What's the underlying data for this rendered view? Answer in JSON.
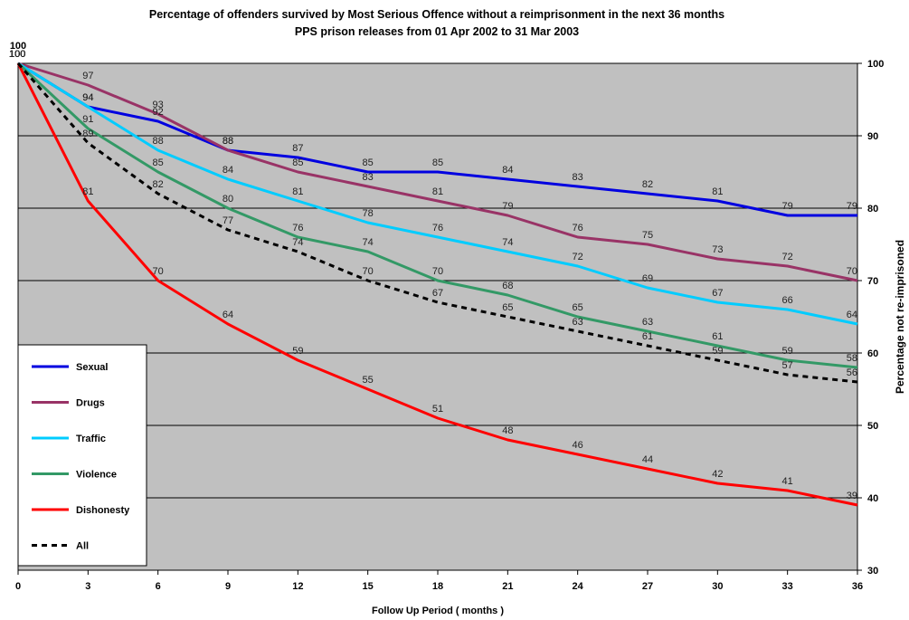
{
  "chart_data": {
    "type": "line",
    "title": "Percentage of offenders survived by Most Serious Offence without a reimprisonment in the next 36 months",
    "subtitle": "PPS prison releases from 01 Apr 2002 to 31 Mar 2003",
    "xlabel": "Follow Up Period ( months )",
    "ylabel_right": "Percentage not re-imprisoned",
    "x": [
      0,
      3,
      6,
      9,
      12,
      15,
      18,
      21,
      24,
      27,
      30,
      33,
      36
    ],
    "x_ticks": [
      "0",
      "3",
      "6",
      "9",
      "12",
      "15",
      "18",
      "21",
      "24",
      "27",
      "30",
      "33",
      "36"
    ],
    "ylim": [
      30,
      100
    ],
    "y_ticks": [
      "30",
      "40",
      "50",
      "60",
      "70",
      "80",
      "90",
      "100"
    ],
    "left_axis_top_label": "100",
    "grid": true,
    "legend_position": "bottom-left",
    "series": [
      {
        "name": "Sexual",
        "color": "#0000e0",
        "dashed": false,
        "values": [
          100,
          94,
          92,
          88,
          87,
          85,
          85,
          84,
          83,
          82,
          81,
          79,
          79
        ]
      },
      {
        "name": "Drugs",
        "color": "#993366",
        "dashed": false,
        "values": [
          100,
          97,
          93,
          88,
          85,
          83,
          81,
          79,
          76,
          75,
          73,
          72,
          70
        ]
      },
      {
        "name": "Traffic",
        "color": "#00ccff",
        "dashed": false,
        "values": [
          100,
          94,
          88,
          84,
          81,
          78,
          76,
          74,
          72,
          69,
          67,
          66,
          64
        ]
      },
      {
        "name": "Violence",
        "color": "#339966",
        "dashed": false,
        "values": [
          100,
          91,
          85,
          80,
          76,
          74,
          70,
          68,
          65,
          63,
          61,
          59,
          58
        ]
      },
      {
        "name": "Dishonesty",
        "color": "#ff0000",
        "dashed": false,
        "values": [
          100,
          81,
          70,
          64,
          59,
          55,
          51,
          48,
          46,
          44,
          42,
          41,
          39
        ]
      },
      {
        "name": "All",
        "color": "#000000",
        "dashed": true,
        "values": [
          100,
          89,
          82,
          77,
          74,
          70,
          67,
          65,
          63,
          61,
          59,
          57,
          56
        ]
      }
    ]
  }
}
